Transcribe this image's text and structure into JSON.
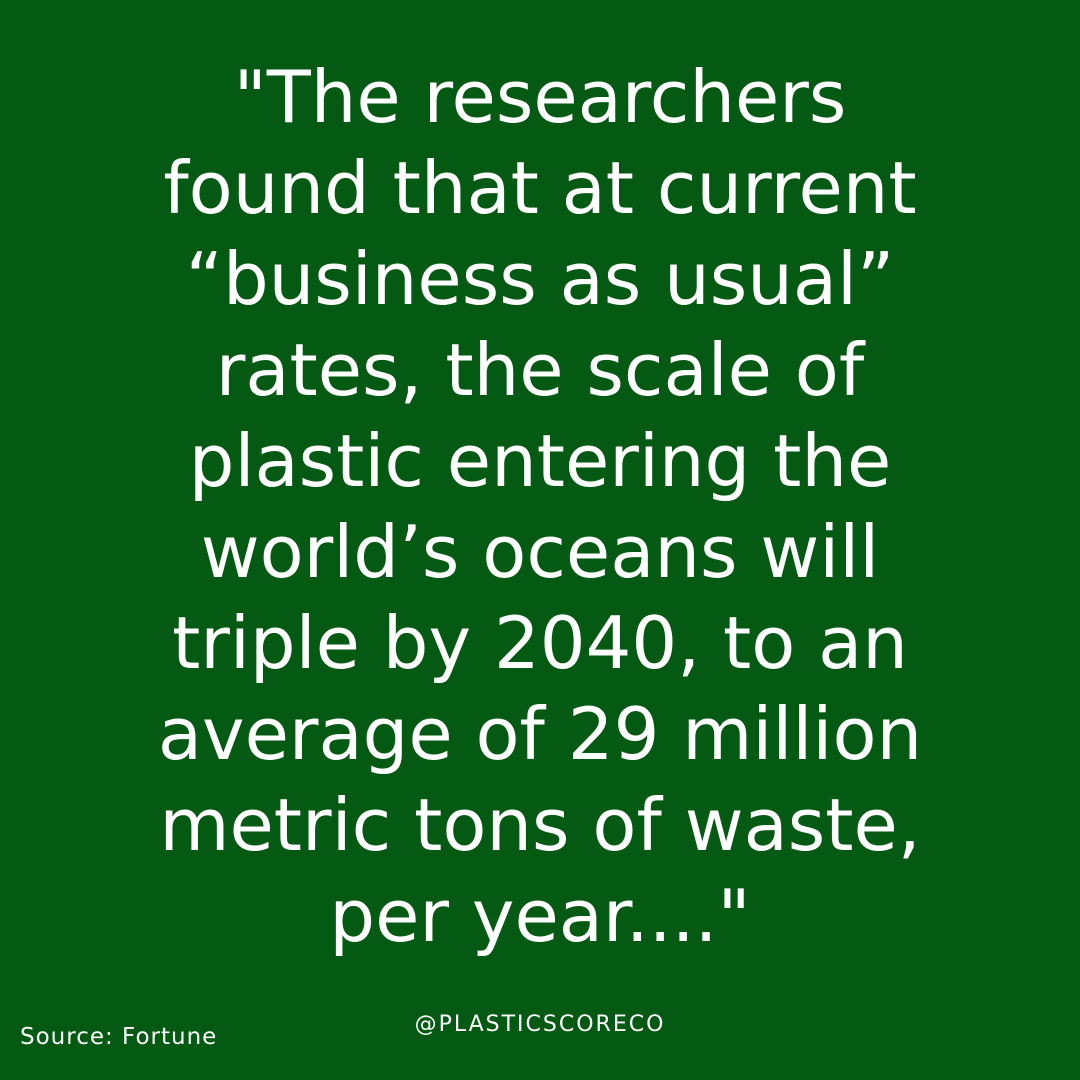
{
  "quote": {
    "lines": [
      "\"The researchers",
      "found that at current",
      "“business as usual”",
      "rates, the scale of",
      "plastic entering the",
      "world’s oceans will",
      "triple by 2040, to an",
      "average of 29 million",
      "metric tons of waste,",
      "per year....\""
    ]
  },
  "footer": {
    "source": "Source: Fortune",
    "handle": "@PLASTICSCORECO"
  },
  "colors": {
    "background": "#045a12",
    "text": "#ffffff"
  }
}
